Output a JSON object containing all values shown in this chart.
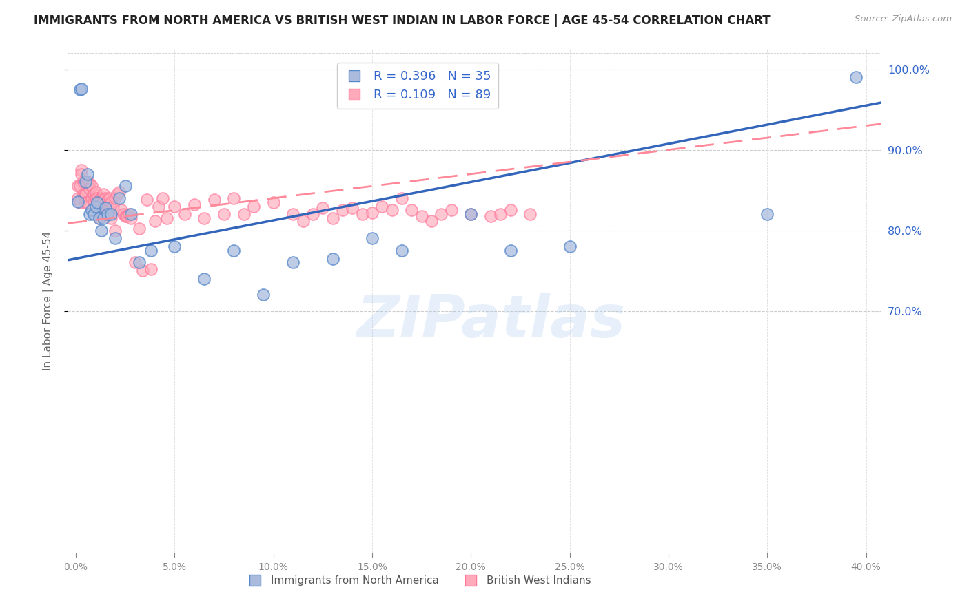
{
  "title": "IMMIGRANTS FROM NORTH AMERICA VS BRITISH WEST INDIAN IN LABOR FORCE | AGE 45-54 CORRELATION CHART",
  "source": "Source: ZipAtlas.com",
  "ylabel": "In Labor Force | Age 45-54",
  "r_blue": 0.396,
  "n_blue": 35,
  "r_pink": 0.109,
  "n_pink": 89,
  "legend_blue": "Immigrants from North America",
  "legend_pink": "British West Indians",
  "xlim_min": -0.004,
  "xlim_max": 0.408,
  "ylim_min": 0.4,
  "ylim_max": 1.025,
  "ytick_vals": [
    0.7,
    0.8,
    0.9,
    1.0
  ],
  "xtick_vals": [
    0.0,
    0.05,
    0.1,
    0.15,
    0.2,
    0.25,
    0.3,
    0.35,
    0.4
  ],
  "color_blue_fill": "#AABBDD",
  "color_pink_fill": "#FFAABB",
  "color_blue_edge": "#5588CC",
  "color_pink_edge": "#FF7799",
  "color_blue_line": "#3366BB",
  "color_pink_line": "#FF8899",
  "watermark": "ZIPatlas",
  "blue_line_x0": 0.0,
  "blue_line_y0": 0.765,
  "blue_line_x1": 0.4,
  "blue_line_y1": 0.955,
  "pink_line_x0": 0.0,
  "pink_line_y0": 0.81,
  "pink_line_x1": 0.4,
  "pink_line_y1": 0.93,
  "blue_x": [
    0.001,
    0.002,
    0.003,
    0.005,
    0.006,
    0.007,
    0.008,
    0.009,
    0.01,
    0.011,
    0.012,
    0.013,
    0.014,
    0.015,
    0.016,
    0.018,
    0.02,
    0.022,
    0.025,
    0.028,
    0.032,
    0.038,
    0.05,
    0.065,
    0.08,
    0.095,
    0.11,
    0.13,
    0.15,
    0.165,
    0.2,
    0.22,
    0.25,
    0.35,
    0.395
  ],
  "blue_y": [
    0.836,
    0.975,
    0.976,
    0.86,
    0.87,
    0.82,
    0.825,
    0.82,
    0.83,
    0.835,
    0.815,
    0.8,
    0.815,
    0.828,
    0.82,
    0.82,
    0.79,
    0.84,
    0.855,
    0.82,
    0.76,
    0.775,
    0.78,
    0.74,
    0.775,
    0.72,
    0.76,
    0.765,
    0.79,
    0.775,
    0.82,
    0.775,
    0.78,
    0.82,
    0.99
  ],
  "pink_x": [
    0.001,
    0.001,
    0.002,
    0.002,
    0.003,
    0.003,
    0.004,
    0.004,
    0.005,
    0.005,
    0.005,
    0.006,
    0.006,
    0.007,
    0.007,
    0.008,
    0.008,
    0.009,
    0.009,
    0.01,
    0.01,
    0.011,
    0.011,
    0.012,
    0.012,
    0.013,
    0.013,
    0.014,
    0.014,
    0.015,
    0.015,
    0.016,
    0.016,
    0.017,
    0.017,
    0.018,
    0.018,
    0.019,
    0.02,
    0.02,
    0.021,
    0.022,
    0.023,
    0.024,
    0.025,
    0.026,
    0.027,
    0.028,
    0.03,
    0.032,
    0.034,
    0.036,
    0.038,
    0.04,
    0.042,
    0.044,
    0.046,
    0.05,
    0.055,
    0.06,
    0.065,
    0.07,
    0.075,
    0.08,
    0.085,
    0.09,
    0.1,
    0.11,
    0.115,
    0.12,
    0.125,
    0.13,
    0.135,
    0.14,
    0.145,
    0.15,
    0.155,
    0.16,
    0.165,
    0.17,
    0.175,
    0.18,
    0.185,
    0.19,
    0.2,
    0.21,
    0.215,
    0.22,
    0.23
  ],
  "pink_y": [
    0.84,
    0.855,
    0.835,
    0.855,
    0.875,
    0.87,
    0.86,
    0.845,
    0.845,
    0.845,
    0.835,
    0.86,
    0.835,
    0.858,
    0.852,
    0.84,
    0.855,
    0.835,
    0.845,
    0.84,
    0.848,
    0.835,
    0.84,
    0.838,
    0.815,
    0.82,
    0.84,
    0.845,
    0.838,
    0.83,
    0.84,
    0.838,
    0.825,
    0.84,
    0.825,
    0.835,
    0.815,
    0.83,
    0.8,
    0.84,
    0.845,
    0.848,
    0.825,
    0.82,
    0.818,
    0.818,
    0.82,
    0.815,
    0.76,
    0.802,
    0.75,
    0.838,
    0.752,
    0.812,
    0.83,
    0.84,
    0.815,
    0.83,
    0.82,
    0.832,
    0.815,
    0.838,
    0.82,
    0.84,
    0.82,
    0.83,
    0.835,
    0.82,
    0.812,
    0.82,
    0.828,
    0.815,
    0.825,
    0.828,
    0.82,
    0.822,
    0.83,
    0.825,
    0.84,
    0.825,
    0.818,
    0.812,
    0.82,
    0.825,
    0.82,
    0.818,
    0.82,
    0.825,
    0.82
  ]
}
